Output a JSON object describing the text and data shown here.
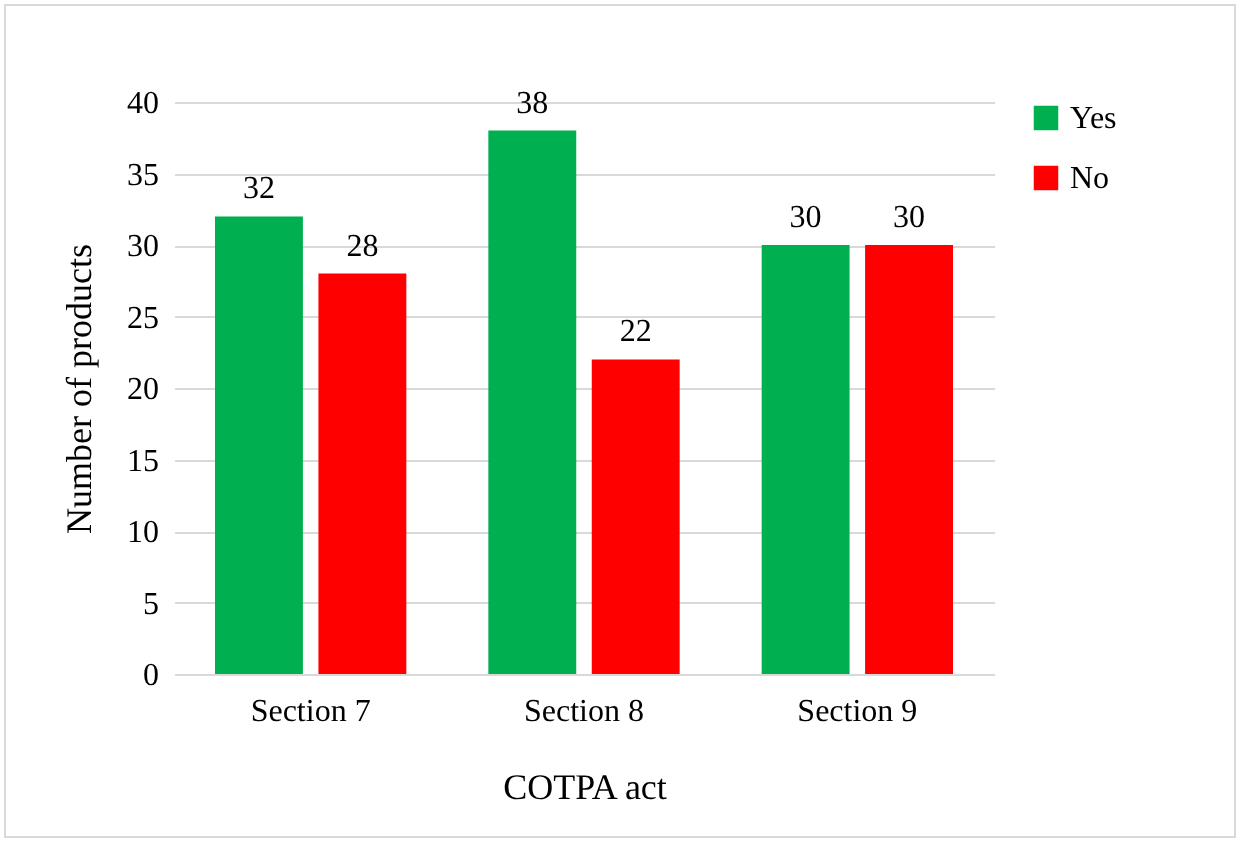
{
  "chart_data": {
    "type": "bar",
    "xlabel": "COTPA act",
    "ylabel": "Number of products",
    "categories": [
      "Section 7",
      "Section 8",
      "Section 9"
    ],
    "series": [
      {
        "name": "Yes",
        "color": "#00b050",
        "values": [
          32,
          38,
          30
        ]
      },
      {
        "name": "No",
        "color": "#ff0000",
        "values": [
          28,
          22,
          30
        ]
      }
    ],
    "ylim": [
      0,
      40
    ],
    "yticks": [
      0,
      5,
      10,
      15,
      20,
      25,
      30,
      35,
      40
    ],
    "grid": "y",
    "legend": "right",
    "data_labels": true
  }
}
